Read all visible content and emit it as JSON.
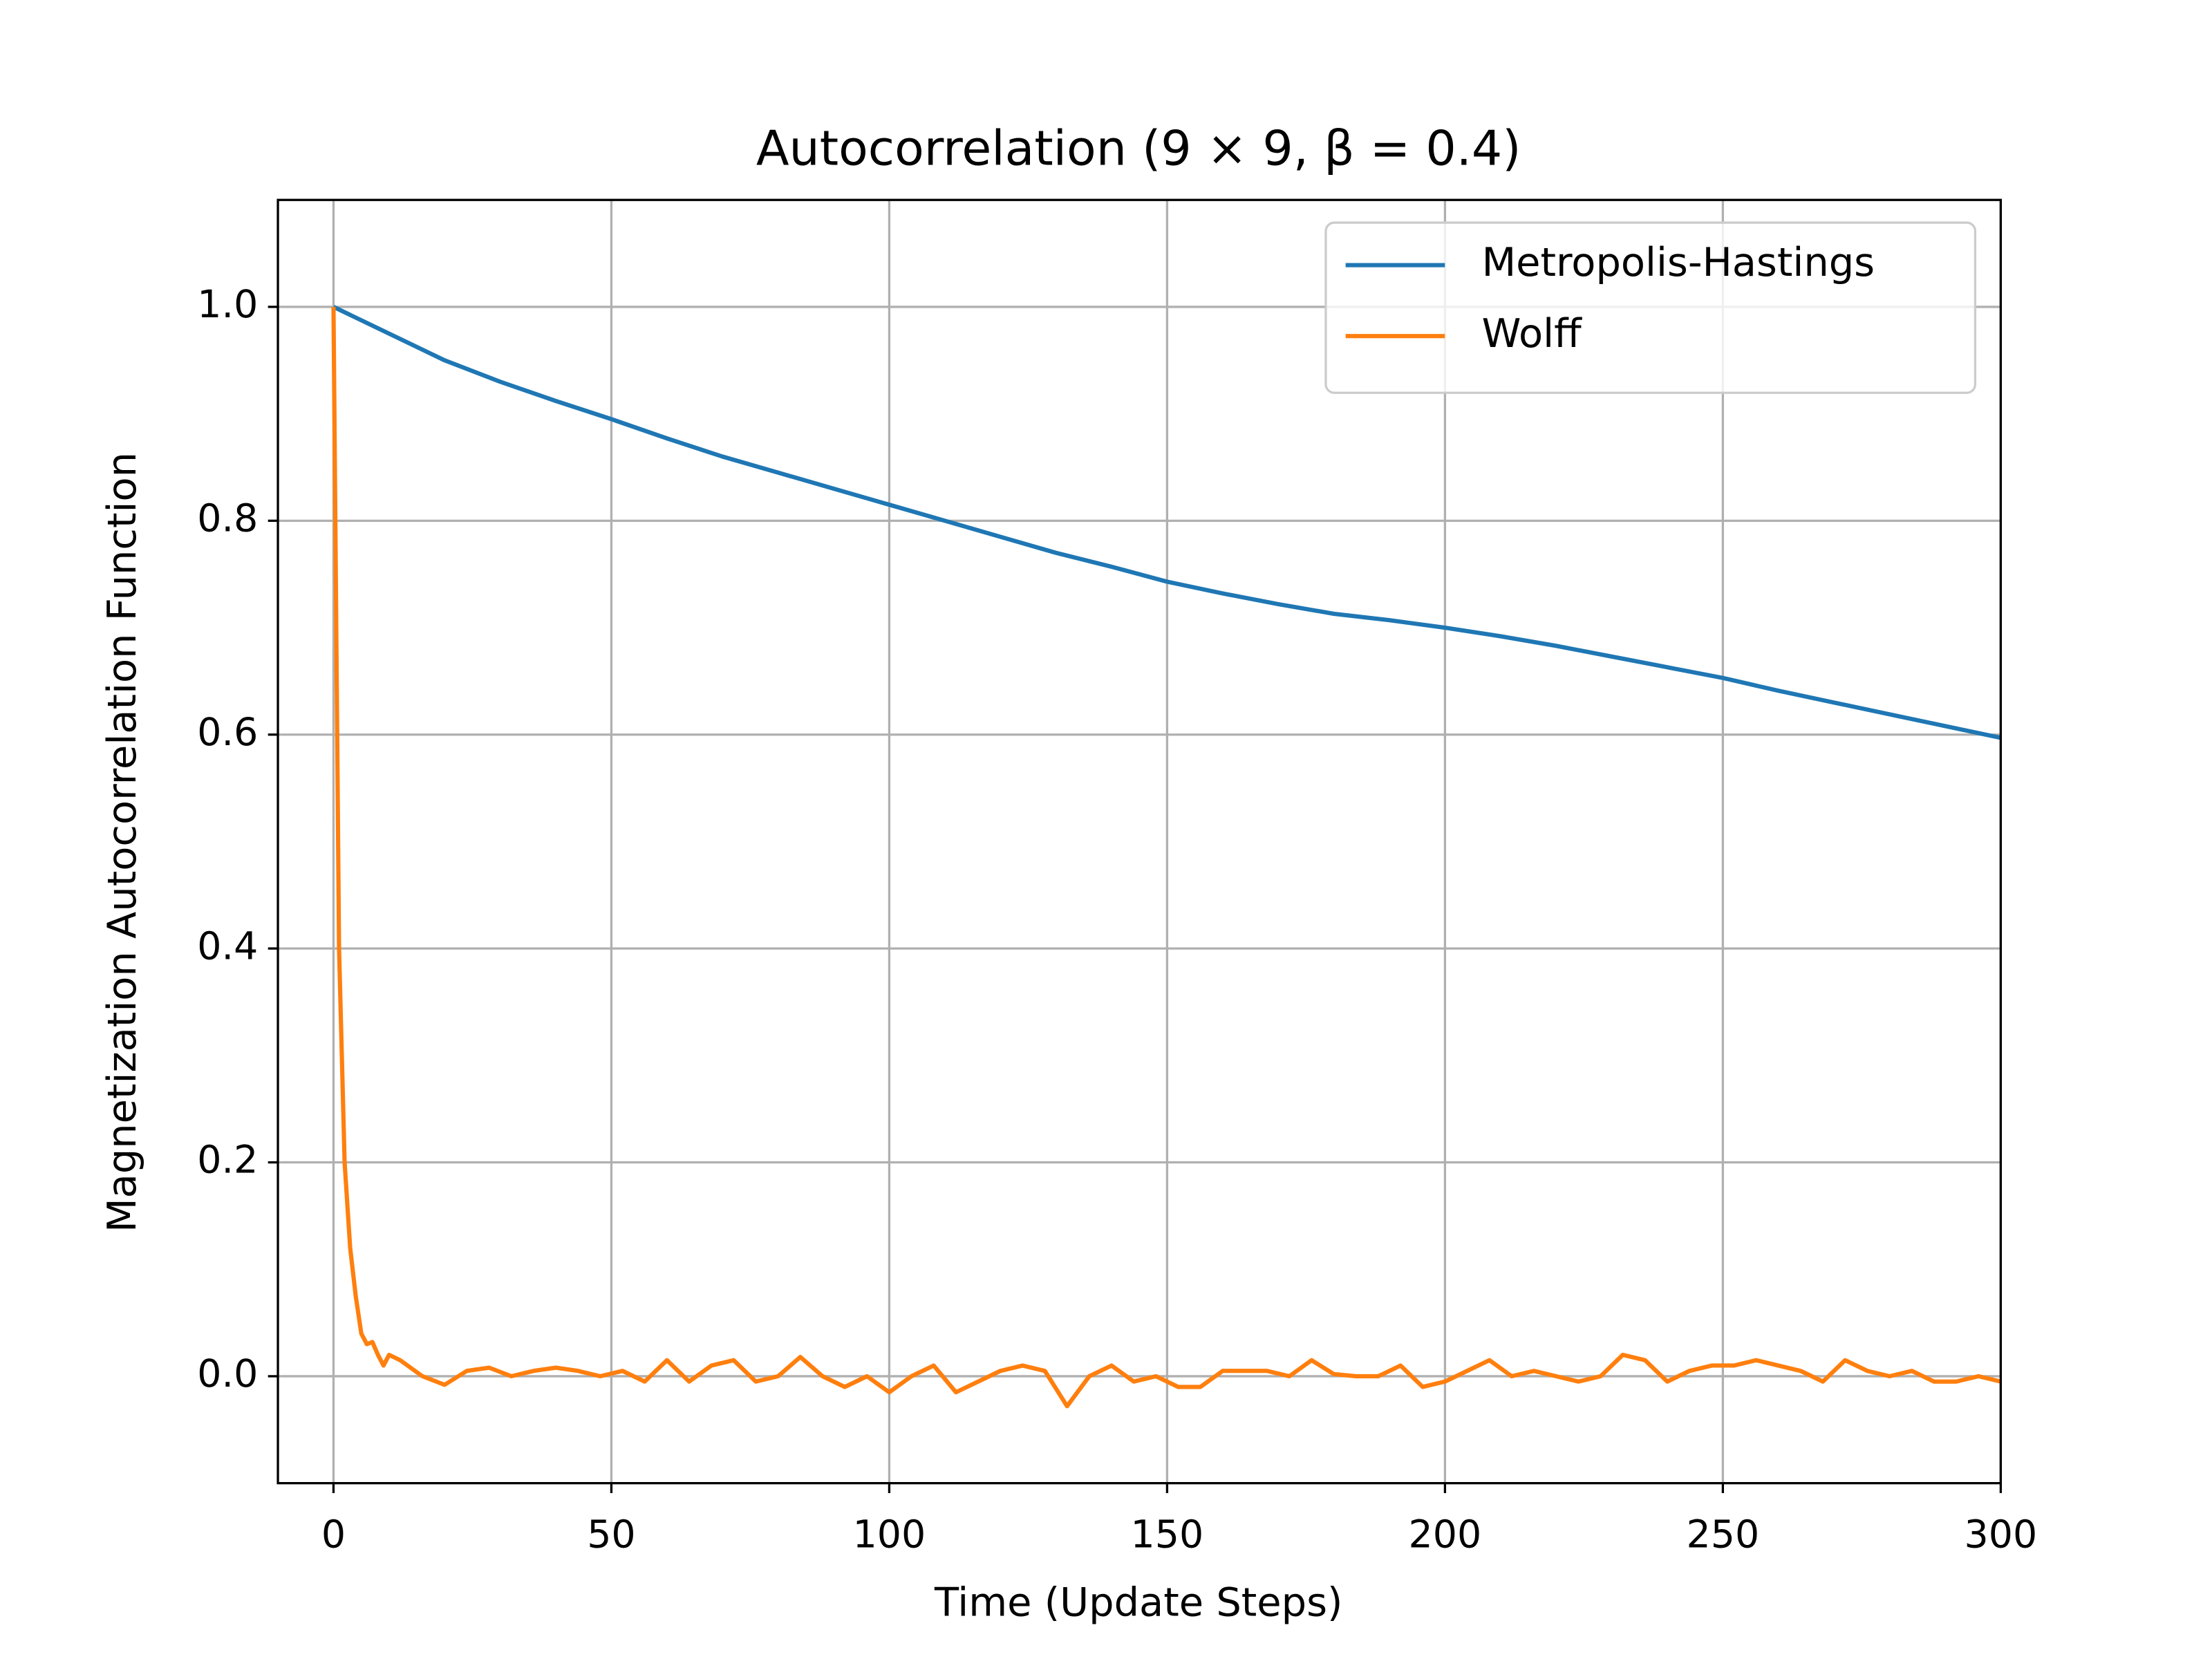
{
  "chart_data": {
    "type": "line",
    "title": "Autocorrelation (9 × 9, β = 0.4)",
    "x_label": "Time (Update Steps)",
    "y_label": "Magnetization Autocorrelation Function",
    "xlim": [
      -10,
      300
    ],
    "ylim": [
      -0.1,
      1.1
    ],
    "xticks": [
      0,
      50,
      100,
      150,
      200,
      250,
      300
    ],
    "yticks": [
      {
        "value": 0,
        "label": "0.0"
      },
      0.2,
      0.4,
      0.6,
      0.8,
      {
        "value": 1,
        "label": "1.0"
      }
    ],
    "grid": true,
    "legend": "upper right",
    "series": [
      {
        "name": "Metropolis-Hastings",
        "color": "#1f77b4",
        "x": [
          0,
          10,
          20,
          25,
          30,
          40,
          50,
          60,
          70,
          80,
          90,
          100,
          110,
          120,
          130,
          140,
          150,
          160,
          170,
          180,
          190,
          200,
          210,
          220,
          230,
          240,
          250,
          260,
          270,
          280,
          290,
          300
        ],
        "values": [
          1.0,
          0.975,
          0.95,
          0.94,
          0.93,
          0.912,
          0.895,
          0.877,
          0.86,
          0.845,
          0.83,
          0.815,
          0.8,
          0.785,
          0.77,
          0.757,
          0.743,
          0.732,
          0.722,
          0.713,
          0.707,
          0.7,
          0.692,
          0.683,
          0.673,
          0.663,
          0.653,
          0.641,
          0.63,
          0.619,
          0.608,
          0.597
        ]
      },
      {
        "name": "Wolff",
        "color": "#ff7f0e",
        "x": [
          0,
          1,
          2,
          3,
          4,
          5,
          6,
          7,
          8,
          9,
          10,
          12,
          16,
          20,
          24,
          28,
          32,
          36,
          40,
          44,
          48,
          52,
          56,
          60,
          64,
          68,
          72,
          76,
          80,
          84,
          88,
          92,
          96,
          100,
          104,
          108,
          112,
          116,
          120,
          124,
          128,
          132,
          136,
          140,
          144,
          148,
          152,
          156,
          160,
          164,
          168,
          172,
          176,
          180,
          184,
          188,
          192,
          196,
          200,
          204,
          208,
          212,
          216,
          220,
          224,
          228,
          232,
          236,
          240,
          244,
          248,
          252,
          256,
          260,
          264,
          268,
          272,
          276,
          280,
          284,
          288,
          292,
          296,
          300
        ],
        "values": [
          1.0,
          0.4,
          0.2,
          0.12,
          0.075,
          0.04,
          0.03,
          0.032,
          0.02,
          0.01,
          0.02,
          0.015,
          0.0,
          -0.008,
          0.005,
          0.008,
          0.0,
          0.005,
          0.008,
          0.005,
          0.0,
          0.005,
          -0.005,
          0.015,
          -0.005,
          0.01,
          0.015,
          -0.005,
          0.0,
          0.018,
          0.0,
          -0.01,
          0.0,
          -0.015,
          0.0,
          0.01,
          -0.015,
          -0.005,
          0.005,
          0.01,
          0.005,
          -0.028,
          0.0,
          0.01,
          -0.005,
          0.0,
          -0.01,
          -0.01,
          0.005,
          0.005,
          0.005,
          0.0,
          0.015,
          0.002,
          0.0,
          0.0,
          0.01,
          -0.01,
          -0.005,
          0.005,
          0.015,
          0.0,
          0.005,
          0.0,
          -0.005,
          0.0,
          0.02,
          0.015,
          -0.005,
          0.005,
          0.01,
          0.01,
          0.015,
          0.01,
          0.005,
          -0.005,
          0.015,
          0.005,
          0.0,
          0.005,
          -0.005,
          -0.005,
          0.0,
          -0.005
        ]
      }
    ]
  }
}
